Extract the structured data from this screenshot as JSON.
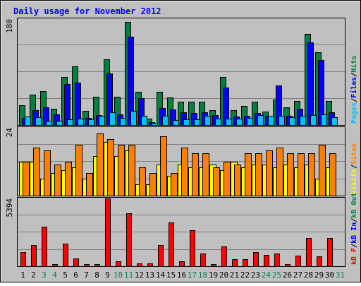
{
  "title": "Daily usage for November 2012",
  "colors": {
    "background": "#c0c0c0",
    "border": "#000000",
    "title": "#0000ff",
    "grid": "#808080",
    "hits": "#008040",
    "files": "#0000ff",
    "pages": "#00c0ff",
    "sites": "#ff8000",
    "visits": "#ffff00",
    "kbin": "#0000ff",
    "kbout": "#008040",
    "kbf": "#ff0000",
    "weekend": "#00805c",
    "weekday": "#000000"
  },
  "chart_data": [
    {
      "type": "bar",
      "title": "Daily usage for November 2012",
      "panel": "hits-files-pages",
      "ylabel_top": "180",
      "ylim": [
        0,
        180
      ],
      "legend": [
        {
          "text": "Pages",
          "color": "#00c0ff"
        },
        {
          "text": "/",
          "color": "#000000"
        },
        {
          "text": "Files",
          "color": "#0000ff"
        },
        {
          "text": "/",
          "color": "#000000"
        },
        {
          "text": "Hits",
          "color": "#008040"
        }
      ],
      "categories": [
        "1",
        "2",
        "3",
        "4",
        "5",
        "6",
        "7",
        "8",
        "9",
        "10",
        "11",
        "12",
        "13",
        "14",
        "15",
        "16",
        "17",
        "18",
        "19",
        "20",
        "21",
        "22",
        "23",
        "24",
        "25",
        "26",
        "27",
        "28",
        "29",
        "30",
        "31"
      ],
      "series": [
        {
          "name": "Hits",
          "values": [
            34,
            52,
            57,
            27,
            82,
            100,
            24,
            48,
            112,
            48,
            175,
            56,
            11,
            56,
            47,
            40,
            40,
            40,
            25,
            82,
            25,
            33,
            39,
            23,
            43,
            30,
            41,
            155,
            123,
            41,
            0
          ]
        },
        {
          "name": "Files",
          "values": [
            12,
            25,
            30,
            18,
            69,
            72,
            12,
            17,
            88,
            18,
            150,
            45,
            5,
            29,
            26,
            21,
            20,
            22,
            17,
            64,
            14,
            15,
            20,
            15,
            67,
            15,
            28,
            140,
            110,
            22,
            0
          ]
        },
        {
          "name": "Pages",
          "values": [
            14,
            13,
            7,
            7,
            9,
            11,
            9,
            16,
            22,
            12,
            24,
            15,
            4,
            15,
            8,
            10,
            9,
            16,
            11,
            11,
            11,
            12,
            17,
            15,
            15,
            13,
            15,
            17,
            18,
            13,
            0
          ]
        }
      ]
    },
    {
      "type": "bar",
      "panel": "visits-sites",
      "ylabel_top": "24",
      "ylim": [
        0,
        24
      ],
      "legend": [
        {
          "text": "Visits",
          "color": "#ffff00"
        },
        {
          "text": "/",
          "color": "#000000"
        },
        {
          "text": "Sites",
          "color": "#ff8000"
        }
      ],
      "categories": [
        "1",
        "2",
        "3",
        "4",
        "5",
        "6",
        "7",
        "8",
        "9",
        "10",
        "11",
        "12",
        "13",
        "14",
        "15",
        "16",
        "17",
        "18",
        "19",
        "20",
        "21",
        "22",
        "23",
        "24",
        "25",
        "26",
        "27",
        "28",
        "29",
        "30",
        "31"
      ],
      "series": [
        {
          "name": "Visits",
          "values": [
            12,
            12,
            6,
            8,
            9,
            10,
            6,
            14,
            19,
            14,
            16,
            4,
            4,
            11,
            7,
            11,
            10,
            10,
            11,
            9,
            12,
            10,
            11,
            11,
            10,
            11,
            10,
            11,
            6,
            10,
            0
          ]
        },
        {
          "name": "Sites",
          "values": [
            12,
            17,
            16,
            11,
            12,
            18,
            8,
            22,
            20,
            18,
            18,
            10,
            8,
            21,
            8,
            17,
            15,
            15,
            10,
            12,
            11,
            15,
            15,
            16,
            17,
            15,
            15,
            15,
            18,
            15,
            0
          ]
        }
      ]
    },
    {
      "type": "bar",
      "panel": "kbf-kbin-kbout",
      "ylabel_top": "5394",
      "ylim": [
        0,
        5394
      ],
      "legend": [
        {
          "text": "kB F",
          "color": "#ff0000"
        },
        {
          "text": "/",
          "color": "#000000"
        },
        {
          "text": "kB In",
          "color": "#0000ff"
        },
        {
          "text": "/",
          "color": "#000000"
        },
        {
          "text": "kB Out",
          "color": "#008040"
        }
      ],
      "categories": [
        "1",
        "2",
        "3",
        "4",
        "5",
        "6",
        "7",
        "8",
        "9",
        "10",
        "11",
        "12",
        "13",
        "14",
        "15",
        "16",
        "17",
        "18",
        "19",
        "20",
        "21",
        "22",
        "23",
        "24",
        "25",
        "26",
        "27",
        "28",
        "29",
        "30",
        "31"
      ],
      "series": [
        {
          "name": "kB F",
          "values": [
            1100,
            1660,
            3150,
            150,
            1800,
            590,
            150,
            190,
            5394,
            380,
            4200,
            240,
            240,
            1700,
            3460,
            380,
            2870,
            1030,
            150,
            1590,
            570,
            580,
            1100,
            880,
            1030,
            150,
            870,
            2260,
            780,
            2260,
            0
          ]
        }
      ]
    }
  ],
  "days": [
    {
      "label": "1",
      "weekend": false
    },
    {
      "label": "2",
      "weekend": false
    },
    {
      "label": "3",
      "weekend": true
    },
    {
      "label": "4",
      "weekend": true
    },
    {
      "label": "5",
      "weekend": false
    },
    {
      "label": "6",
      "weekend": false
    },
    {
      "label": "7",
      "weekend": false
    },
    {
      "label": "8",
      "weekend": false
    },
    {
      "label": "9",
      "weekend": false
    },
    {
      "label": "10",
      "weekend": true
    },
    {
      "label": "11",
      "weekend": true
    },
    {
      "label": "12",
      "weekend": false
    },
    {
      "label": "13",
      "weekend": false
    },
    {
      "label": "14",
      "weekend": false
    },
    {
      "label": "15",
      "weekend": false
    },
    {
      "label": "16",
      "weekend": false
    },
    {
      "label": "17",
      "weekend": true
    },
    {
      "label": "18",
      "weekend": true
    },
    {
      "label": "19",
      "weekend": false
    },
    {
      "label": "20",
      "weekend": false
    },
    {
      "label": "21",
      "weekend": false
    },
    {
      "label": "22",
      "weekend": false
    },
    {
      "label": "23",
      "weekend": false
    },
    {
      "label": "24",
      "weekend": true
    },
    {
      "label": "25",
      "weekend": true
    },
    {
      "label": "26",
      "weekend": false
    },
    {
      "label": "27",
      "weekend": false
    },
    {
      "label": "28",
      "weekend": false
    },
    {
      "label": "29",
      "weekend": false
    },
    {
      "label": "30",
      "weekend": false
    },
    {
      "label": "31",
      "weekend": true
    }
  ]
}
